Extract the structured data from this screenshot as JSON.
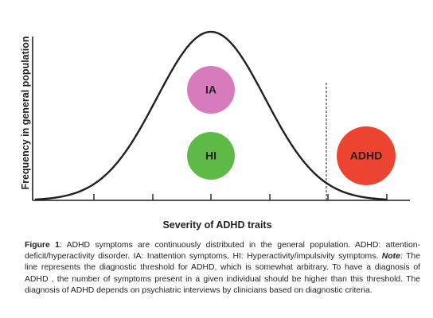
{
  "figure": {
    "y_axis_label": "Frequency in general population",
    "x_axis_label": "Severity of ADHD traits",
    "circles": [
      {
        "id": "ia",
        "label": "IA",
        "color": "#d77bbd"
      },
      {
        "id": "hi",
        "label": "HI",
        "color": "#5fb946"
      },
      {
        "id": "adhd",
        "label": "ADHD",
        "color": "#ec4430"
      }
    ],
    "threshold_line": "dashed"
  },
  "caption": {
    "label": "Figure 1",
    "part1": ": ADHD symptoms are continuously distributed in the general population. ADHD: attention-deficit/hyperactivity disorder. IA: Inattention symptoms, HI: Hyperactivity/impulsivity symptoms. ",
    "note_label": "Note",
    "part2": ": The line represents the diagnostic threshold for ADHD, which is somewhat arbitrary. To have a diagnosis of ADHD , the number of symptoms present in a given individual should be higher than this threshold. The diagnosis of ADHD depends on psychiatric interviews by clinicians based on diagnostic criteria."
  }
}
